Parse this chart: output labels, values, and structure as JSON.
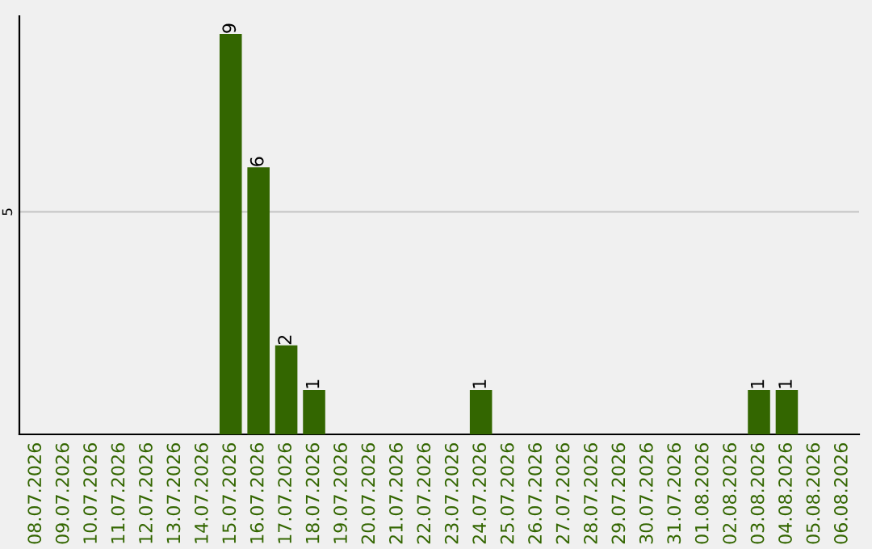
{
  "chart_data": {
    "type": "bar",
    "categories": [
      "08.07.2026",
      "09.07.2026",
      "10.07.2026",
      "11.07.2026",
      "12.07.2026",
      "13.07.2026",
      "14.07.2026",
      "15.07.2026",
      "16.07.2026",
      "17.07.2026",
      "18.07.2026",
      "19.07.2026",
      "20.07.2026",
      "21.07.2026",
      "22.07.2026",
      "23.07.2026",
      "24.07.2026",
      "25.07.2026",
      "26.07.2026",
      "27.07.2026",
      "28.07.2026",
      "29.07.2026",
      "30.07.2026",
      "31.07.2026",
      "01.08.2026",
      "02.08.2026",
      "03.08.2026",
      "04.08.2026",
      "05.08.2026",
      "06.08.2026"
    ],
    "values": [
      0,
      0,
      0,
      0,
      0,
      0,
      0,
      9,
      6,
      2,
      1,
      0,
      0,
      0,
      0,
      0,
      1,
      0,
      0,
      0,
      0,
      0,
      0,
      0,
      0,
      0,
      1,
      1,
      0,
      0
    ],
    "value_labels": [
      null,
      null,
      null,
      null,
      null,
      null,
      null,
      "9",
      "6",
      "2",
      "1",
      null,
      null,
      null,
      null,
      null,
      "1",
      null,
      null,
      null,
      null,
      null,
      null,
      null,
      null,
      null,
      "1",
      "1",
      null,
      null
    ],
    "color": "#336600",
    "ylim": [
      0,
      9.4
    ],
    "yticks": [
      5
    ],
    "grid": "y"
  }
}
